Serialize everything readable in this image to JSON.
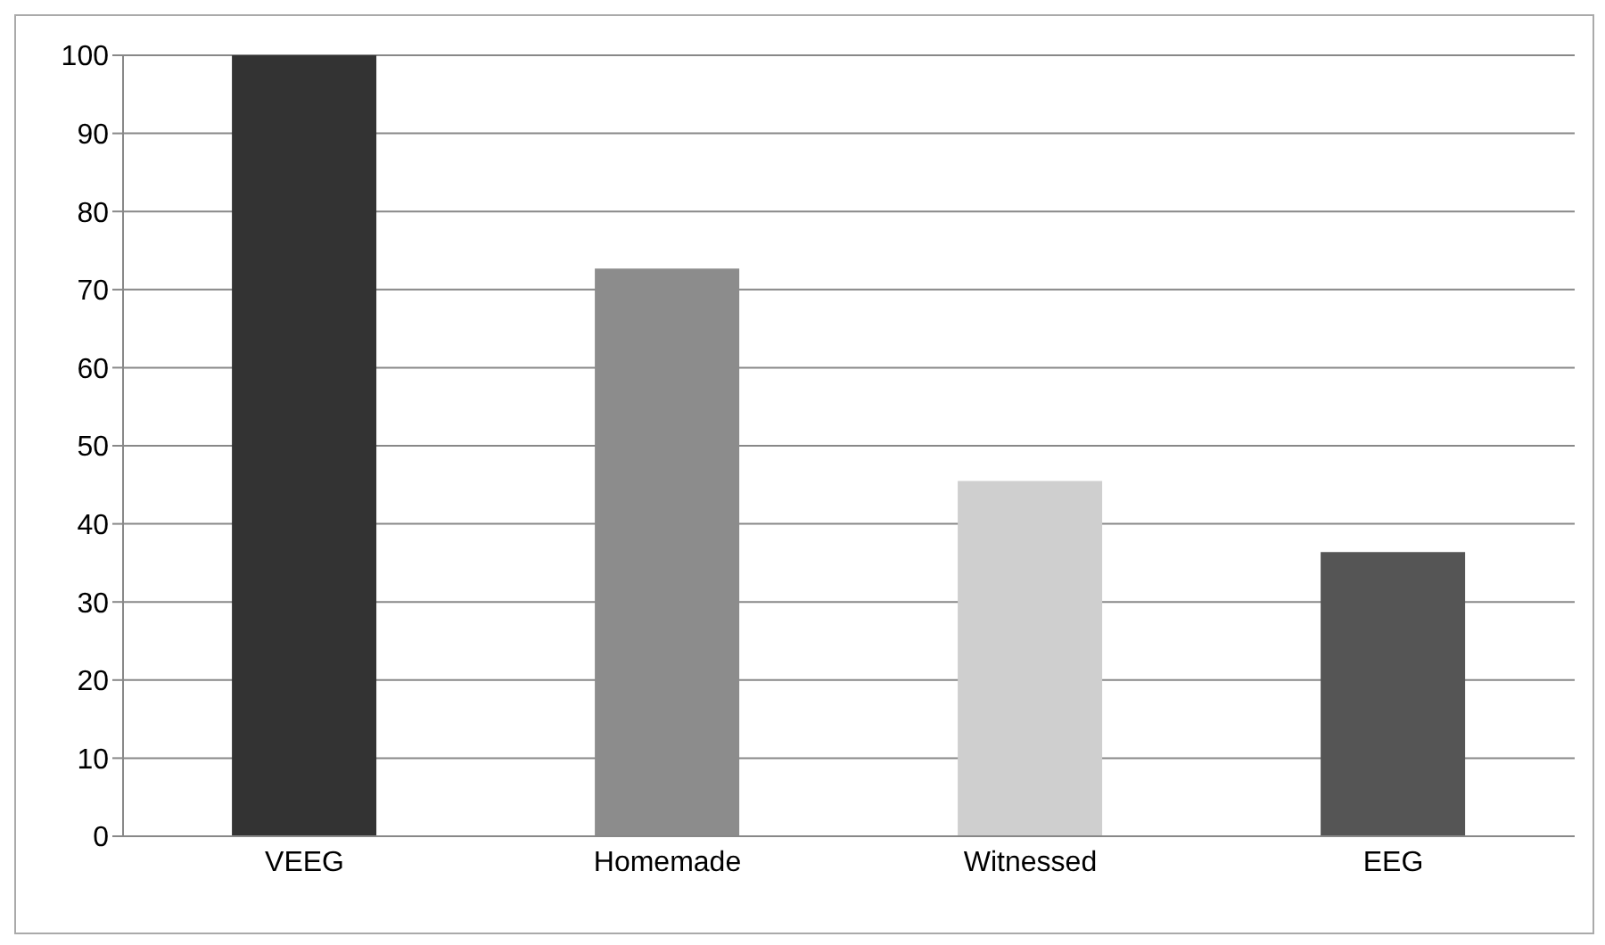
{
  "chart_data": {
    "type": "bar",
    "categories": [
      "VEEG",
      "Homemade",
      "Witnessed",
      "EEG"
    ],
    "values": [
      100,
      72.7,
      45.5,
      36.4
    ],
    "colors": [
      "#333333",
      "#8c8c8c",
      "#cfcfcf",
      "#555555"
    ],
    "ylim": [
      0,
      100
    ],
    "yticks": [
      0,
      10,
      20,
      30,
      40,
      50,
      60,
      70,
      80,
      90,
      100
    ],
    "grid": "y"
  }
}
